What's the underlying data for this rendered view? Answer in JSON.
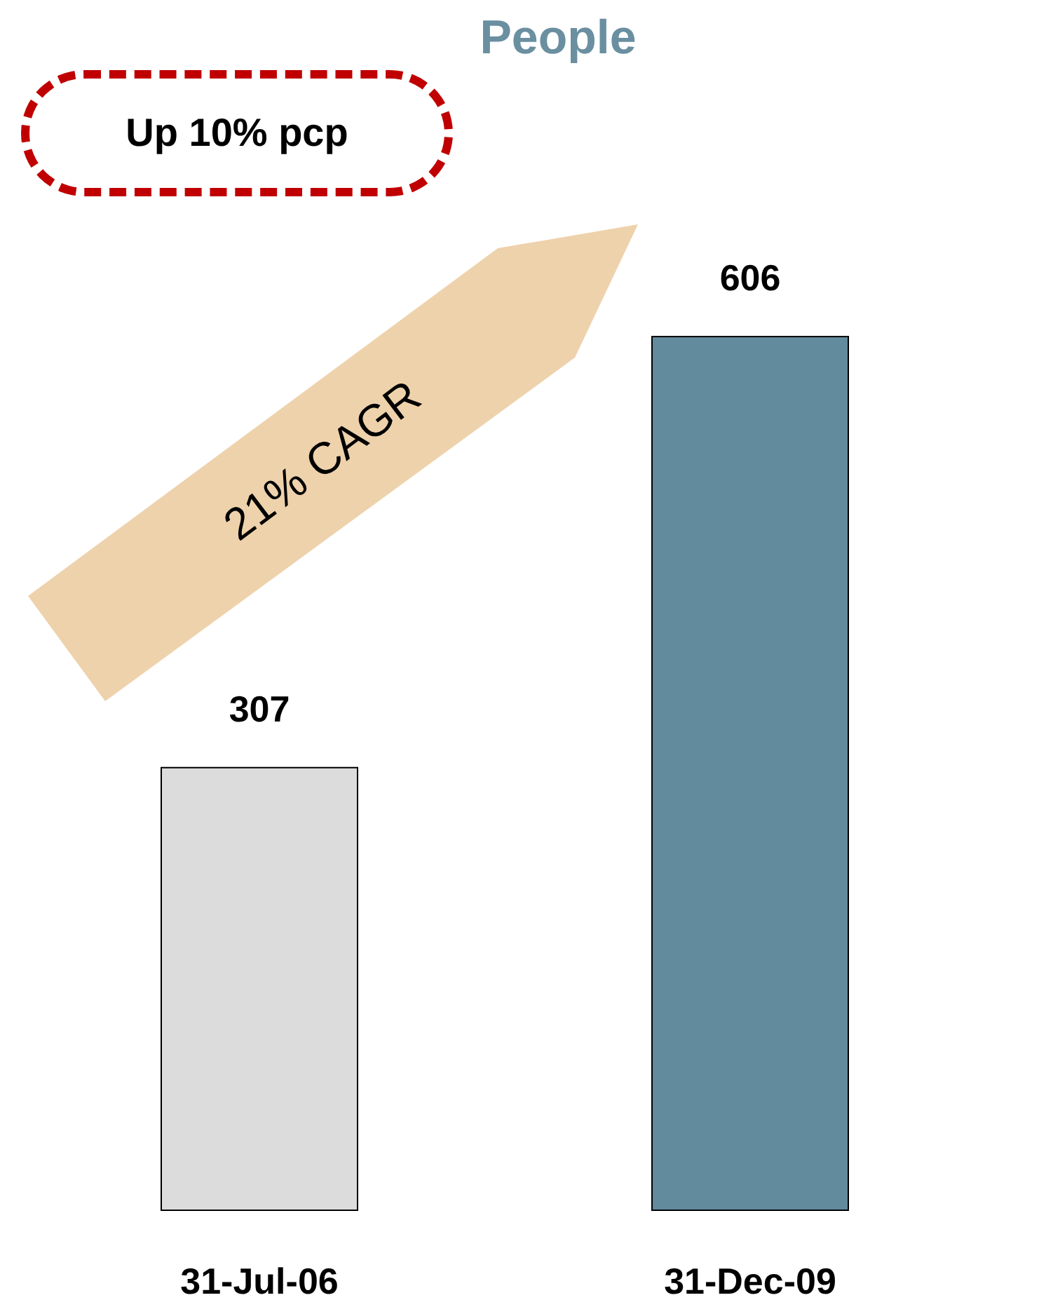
{
  "chart_data": {
    "type": "bar",
    "title": "People",
    "categories": [
      "31-Jul-06",
      "31-Dec-09"
    ],
    "values": [
      307,
      606
    ],
    "colors": [
      "#dcdcdc",
      "#628b9e"
    ],
    "data_labels": true,
    "annotations": [
      "Up 10% pcp",
      "21% CAGR"
    ]
  }
}
